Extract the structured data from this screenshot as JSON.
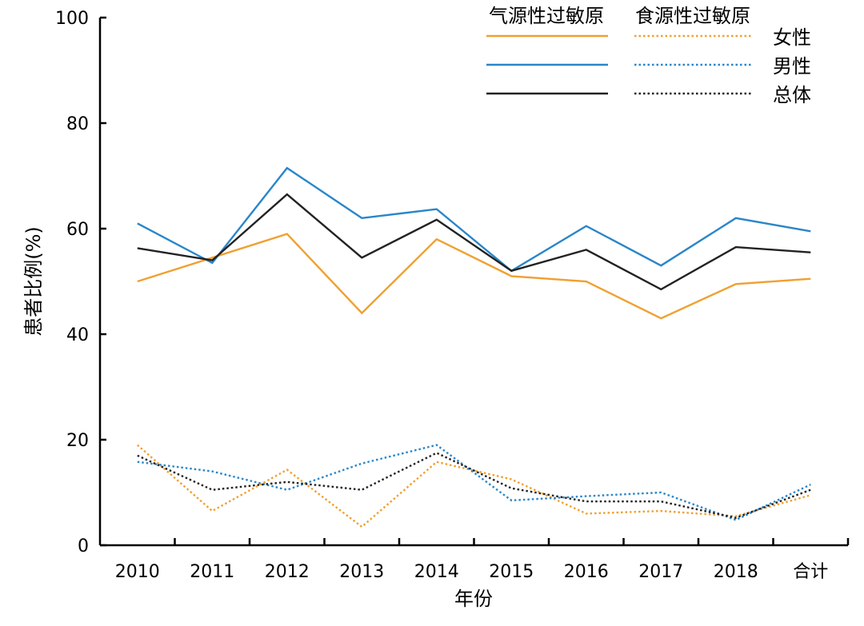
{
  "chart_data": {
    "type": "line",
    "title": "",
    "xlabel": "年份",
    "ylabel": "患者比例(%)",
    "ylim": [
      0,
      100
    ],
    "yticks": [
      0,
      20,
      40,
      60,
      80,
      100
    ],
    "categories": [
      "2010",
      "2011",
      "2012",
      "2013",
      "2014",
      "2015",
      "2016",
      "2017",
      "2018",
      "合计"
    ],
    "grid": false,
    "legend": {
      "placement": "top-right",
      "column_headers": [
        "气源性过敏原",
        "食源性过敏原"
      ],
      "row_labels": [
        "女性",
        "男性",
        "总体"
      ]
    },
    "colors": {
      "female": "#f0a030",
      "male": "#2a86c8",
      "total": "#222222"
    },
    "series": [
      {
        "group": "气源性过敏原",
        "sex": "女性",
        "style": "solid",
        "color": "#f0a030",
        "values": [
          50.0,
          54.5,
          59.0,
          44.0,
          58.0,
          51.0,
          50.0,
          43.0,
          49.5,
          50.5
        ]
      },
      {
        "group": "气源性过敏原",
        "sex": "男性",
        "style": "solid",
        "color": "#2a86c8",
        "values": [
          61.0,
          53.5,
          71.5,
          62.0,
          63.7,
          52.0,
          60.5,
          53.0,
          62.0,
          59.5
        ]
      },
      {
        "group": "气源性过敏原",
        "sex": "总体",
        "style": "solid",
        "color": "#222222",
        "values": [
          56.3,
          54.0,
          66.5,
          54.5,
          61.7,
          52.0,
          56.0,
          48.5,
          56.5,
          55.5
        ]
      },
      {
        "group": "食源性过敏原",
        "sex": "女性",
        "style": "dotted",
        "color": "#f0a030",
        "values": [
          19.0,
          6.5,
          14.3,
          3.5,
          15.8,
          12.5,
          6.0,
          6.5,
          5.5,
          9.5
        ]
      },
      {
        "group": "食源性过敏原",
        "sex": "男性",
        "style": "dotted",
        "color": "#2a86c8",
        "values": [
          15.8,
          14.0,
          10.5,
          15.5,
          19.0,
          8.5,
          9.3,
          10.0,
          4.8,
          11.5
        ]
      },
      {
        "group": "食源性过敏原",
        "sex": "总体",
        "style": "dotted",
        "color": "#222222",
        "values": [
          17.0,
          10.5,
          12.0,
          10.5,
          17.5,
          10.8,
          8.3,
          8.3,
          5.2,
          10.5
        ]
      }
    ]
  }
}
